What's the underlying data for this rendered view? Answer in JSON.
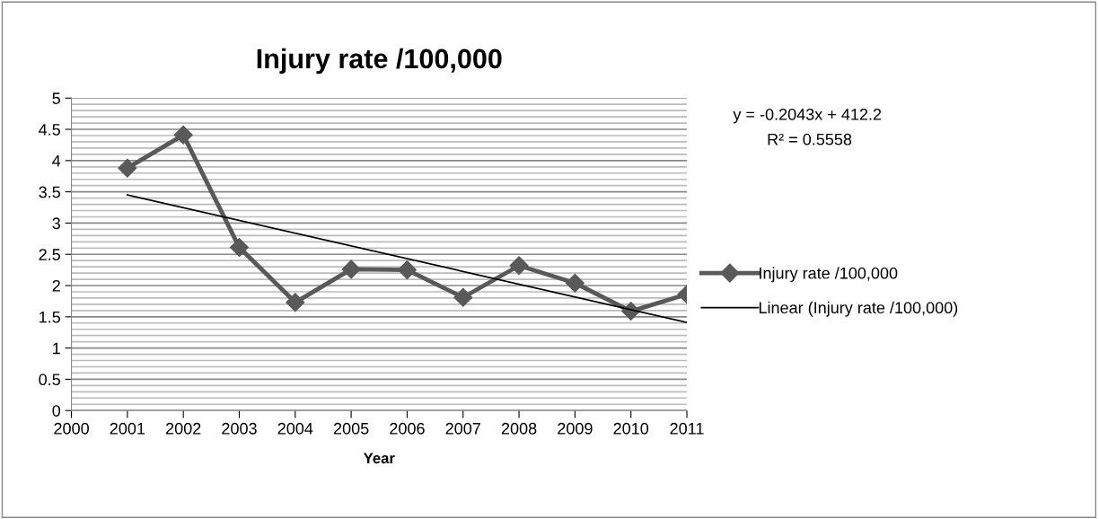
{
  "chart_data": {
    "type": "line",
    "title": "Injury rate /100,000",
    "xlabel": "Year",
    "x": [
      2001,
      2002,
      2003,
      2004,
      2005,
      2006,
      2007,
      2008,
      2009,
      2010,
      2011
    ],
    "series": [
      {
        "name": "Injury rate /100,000",
        "color": "#595959",
        "values": [
          3.88,
          4.41,
          2.61,
          1.73,
          2.26,
          2.25,
          1.81,
          2.32,
          2.04,
          1.59,
          1.86
        ],
        "marker": "diamond"
      },
      {
        "name": "Linear (Injury rate /100,000)",
        "color": "#000000",
        "type": "line",
        "x": [
          2001,
          2011
        ],
        "values": [
          3.45,
          1.41
        ],
        "marker": "none"
      }
    ],
    "xlim": [
      2000,
      2011
    ],
    "xticks": [
      2000,
      2001,
      2002,
      2003,
      2004,
      2005,
      2006,
      2007,
      2008,
      2009,
      2010,
      2011
    ],
    "ylim": [
      0,
      5
    ],
    "yticks": [
      0,
      0.5,
      1,
      1.5,
      2,
      2.5,
      3,
      3.5,
      4,
      4.5,
      5
    ],
    "grid": "y",
    "legend": "right",
    "line_style": "solid",
    "annotations": [
      "y = -0.2043x + 412.2",
      "R² = 0.5558"
    ]
  }
}
